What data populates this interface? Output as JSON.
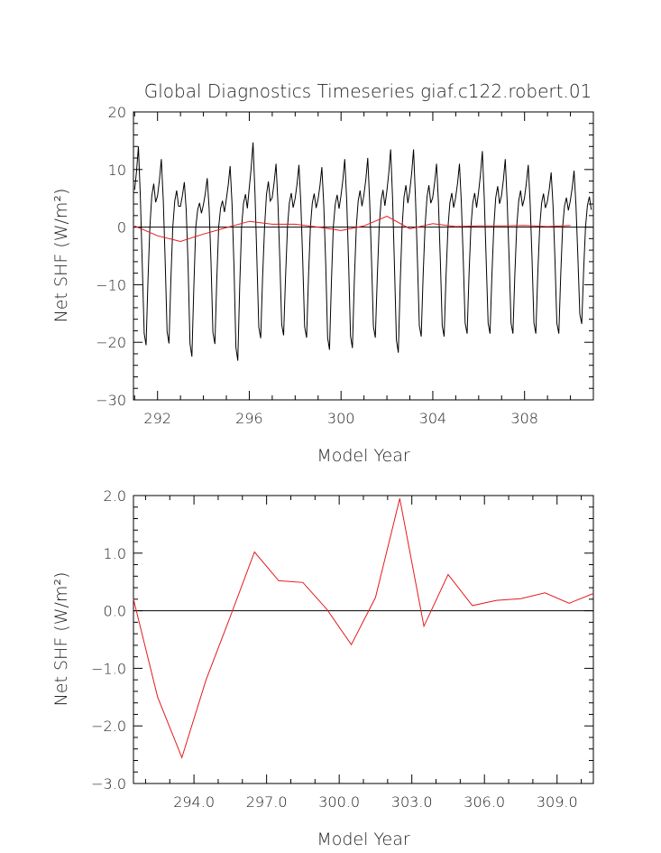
{
  "figure": {
    "title": "Global Diagnostics Timeseries giaf.c122.robert.01"
  },
  "chart_data": [
    {
      "type": "line",
      "panel": "top",
      "xlabel": "Model Year",
      "ylabel": "Net SHF (W/m²)",
      "xlim": [
        290.95,
        311.0
      ],
      "ylim": [
        -30,
        20
      ],
      "xticks": [
        292,
        296,
        300,
        304,
        308
      ],
      "xtick_labels": [
        "292",
        "296",
        "300",
        "304",
        "308"
      ],
      "yticks": [
        -30,
        -20,
        -10,
        0,
        10,
        20
      ],
      "ytick_labels": [
        "−30",
        "−20",
        "−10",
        "0",
        "10",
        "20"
      ],
      "zero_line": true,
      "series": [
        {
          "color": "#000000",
          "x_start": 291.0,
          "x_step": 0.0833,
          "monthly_pattern": [
            6,
            9,
            13,
            5,
            -6,
            -18,
            -20,
            -9,
            0,
            5,
            7,
            4
          ],
          "trough_values": [
            -20.5,
            -20.2,
            -22.5,
            -20.3,
            -23.2,
            -19.3,
            -18.8,
            -19.2,
            -21.3,
            -21.0,
            -19.2,
            -21.8,
            -19.0,
            -19.0,
            -18.5,
            -18.5,
            -18.5,
            -18.5,
            -18.5,
            -16.8
          ],
          "peak_values": [
            14.0,
            11.8,
            7.8,
            8.5,
            10.6,
            14.7,
            11.0,
            10.8,
            10.4,
            11.8,
            12.0,
            13.5,
            13.5,
            11.0,
            11.0,
            13.2,
            11.8,
            10.8,
            9.5,
            9.8
          ]
        },
        {
          "color": "#e41a1c",
          "x": [
            291.0,
            292.0,
            293.0,
            294.0,
            295.0,
            296.0,
            297.0,
            298.0,
            299.0,
            300.0,
            301.0,
            302.0,
            303.0,
            304.0,
            305.0,
            306.0,
            307.0,
            308.0,
            309.0,
            310.0
          ],
          "y": [
            0.2,
            -1.5,
            -2.5,
            -1.2,
            -0.1,
            1.0,
            0.5,
            0.5,
            0.0,
            -0.6,
            0.2,
            1.9,
            -0.3,
            0.6,
            0.1,
            0.2,
            0.2,
            0.3,
            0.1,
            0.3
          ]
        }
      ]
    },
    {
      "type": "line",
      "panel": "bottom",
      "xlabel": "Model Year",
      "ylabel": "Net SHF (W/m²)",
      "xlim": [
        291.5,
        310.5
      ],
      "ylim": [
        -3.0,
        2.0
      ],
      "xticks": [
        294,
        297,
        300,
        303,
        306,
        309
      ],
      "xtick_labels": [
        "294.0",
        "297.0",
        "300.0",
        "303.0",
        "306.0",
        "309.0"
      ],
      "yticks": [
        -3.0,
        -2.0,
        -1.0,
        0.0,
        1.0,
        2.0
      ],
      "ytick_labels": [
        "−3.0",
        "−2.0",
        "−1.0",
        "0.0",
        "1.0",
        "2.0"
      ],
      "zero_line": true,
      "series": [
        {
          "color": "#e41a1c",
          "x": [
            291.5,
            292.5,
            293.5,
            294.5,
            295.5,
            296.5,
            297.5,
            298.5,
            299.5,
            300.5,
            301.5,
            302.5,
            303.5,
            304.5,
            305.5,
            306.5,
            307.5,
            308.5,
            309.5,
            310.5
          ],
          "y": [
            0.2,
            -1.5,
            -2.55,
            -1.2,
            -0.1,
            1.02,
            0.52,
            0.49,
            0.02,
            -0.59,
            0.23,
            1.95,
            -0.27,
            0.63,
            0.09,
            0.18,
            0.21,
            0.31,
            0.13,
            0.3
          ]
        }
      ]
    }
  ]
}
